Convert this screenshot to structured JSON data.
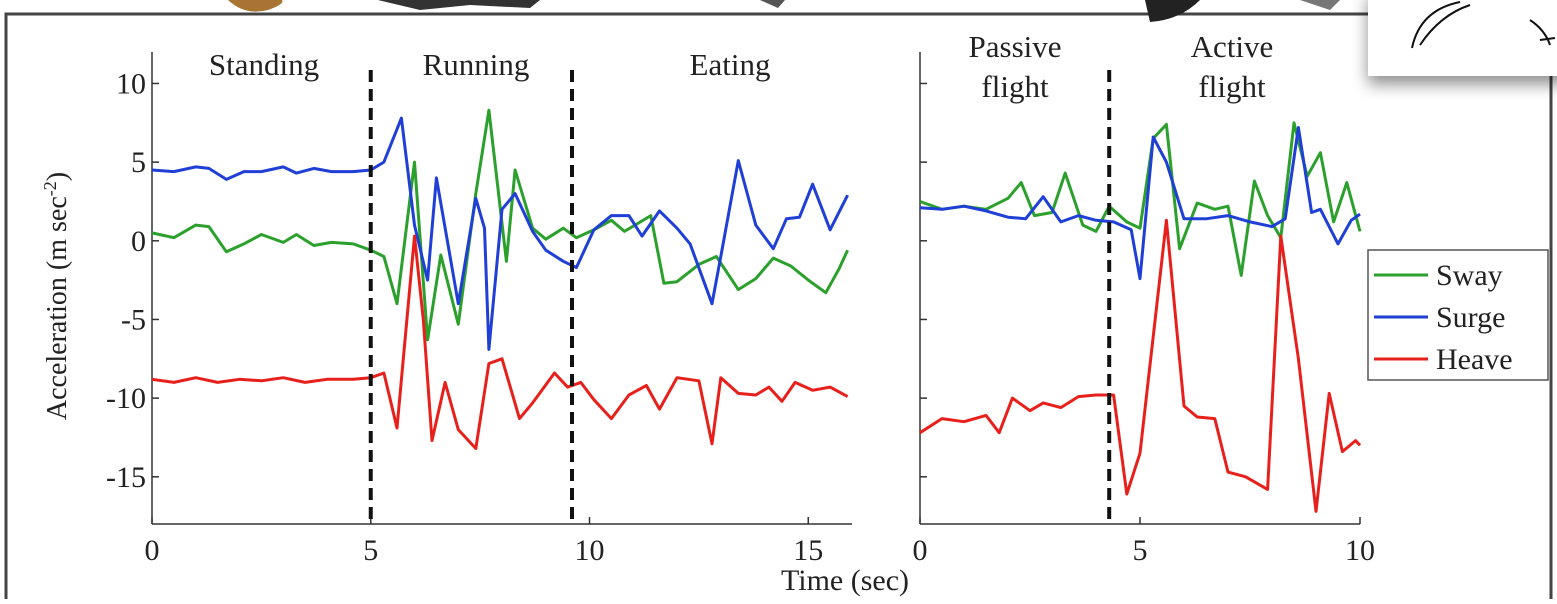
{
  "chart_data": [
    {
      "type": "line",
      "ylabel": [
        "Acceleration (m sec",
        "-2",
        ")"
      ],
      "xlabel": "Time (sec)",
      "annotations": [
        [
          "Standing"
        ],
        [
          "Running"
        ],
        [
          "Eating"
        ]
      ],
      "dividers": [
        5,
        9.6
      ],
      "xlim": [
        0,
        16
      ],
      "xticks": [
        0,
        5,
        10,
        15
      ],
      "ylim": [
        -18,
        12
      ],
      "yticks": [
        -15,
        -10,
        -5,
        0,
        5,
        10
      ],
      "ytick_labels": true,
      "series": [
        {
          "color": "#2ca02c",
          "x": [
            0,
            0.5,
            1,
            1.3,
            1.7,
            2.1,
            2.5,
            3,
            3.3,
            3.7,
            4.1,
            4.6,
            5,
            5.3,
            5.6,
            6,
            6.3,
            6.6,
            7,
            7.4,
            7.7,
            8.1,
            8.3,
            8.7,
            9,
            9.4,
            9.7,
            10.1,
            10.5,
            10.8,
            11.4,
            11.7,
            12,
            12.5,
            12.9,
            13.4,
            13.8,
            14.2,
            14.6,
            15,
            15.4,
            15.7,
            15.9
          ],
          "values": [
            0.5,
            0.2,
            1.0,
            0.9,
            -0.7,
            -0.2,
            0.4,
            -0.1,
            0.4,
            -0.3,
            -0.1,
            -0.2,
            -0.6,
            -1.0,
            -4.0,
            5.0,
            -6.3,
            -0.9,
            -5.3,
            3.0,
            8.3,
            -1.3,
            4.5,
            0.8,
            0.1,
            0.8,
            0.2,
            0.7,
            1.3,
            0.6,
            1.6,
            -2.7,
            -2.6,
            -1.5,
            -1.0,
            -3.1,
            -2.4,
            -1.1,
            -1.6,
            -2.5,
            -3.3,
            -1.8,
            -0.6
          ]
        },
        {
          "color": "#1f3fd6",
          "x": [
            0,
            0.5,
            1,
            1.3,
            1.7,
            2.1,
            2.5,
            3,
            3.3,
            3.7,
            4.1,
            4.6,
            5,
            5.3,
            5.7,
            6,
            6.3,
            6.5,
            7,
            7.4,
            7.6,
            7.7,
            8,
            8.3,
            8.7,
            9,
            9.4,
            9.7,
            10.1,
            10.5,
            10.9,
            11.2,
            11.6,
            12,
            12.3,
            12.8,
            13,
            13.4,
            13.8,
            14.2,
            14.5,
            14.8,
            15.1,
            15.5,
            15.9
          ],
          "values": [
            4.5,
            4.4,
            4.7,
            4.6,
            3.9,
            4.4,
            4.4,
            4.7,
            4.3,
            4.6,
            4.4,
            4.4,
            4.5,
            5.0,
            7.8,
            1.0,
            -2.5,
            4.0,
            -4.0,
            2.7,
            0.8,
            -6.9,
            2.0,
            3.0,
            0.6,
            -0.6,
            -1.3,
            -1.7,
            0.7,
            1.6,
            1.6,
            0.3,
            1.9,
            0.8,
            -0.2,
            -4.0,
            -1.0,
            5.1,
            1.0,
            -0.5,
            1.4,
            1.5,
            3.6,
            0.7,
            2.9
          ]
        },
        {
          "color": "#e8201c",
          "x": [
            0,
            0.5,
            1,
            1.5,
            2,
            2.5,
            3,
            3.5,
            4,
            4.6,
            5,
            5.3,
            5.6,
            6,
            6.2,
            6.4,
            6.7,
            7,
            7.4,
            7.7,
            8,
            8.4,
            8.7,
            9.2,
            9.5,
            9.8,
            10.1,
            10.5,
            10.9,
            11.3,
            11.6,
            12,
            12.5,
            12.8,
            13,
            13.4,
            13.8,
            14.1,
            14.4,
            14.7,
            15.1,
            15.5,
            15.9
          ],
          "values": [
            -8.8,
            -9.0,
            -8.7,
            -9.0,
            -8.8,
            -8.9,
            -8.7,
            -9.0,
            -8.8,
            -8.8,
            -8.7,
            -8.4,
            -11.9,
            0.3,
            -5.0,
            -12.7,
            -9.0,
            -12.0,
            -13.2,
            -7.8,
            -7.5,
            -11.3,
            -10.3,
            -8.4,
            -9.3,
            -9.0,
            -10.1,
            -11.3,
            -9.8,
            -9.2,
            -10.7,
            -8.7,
            -8.9,
            -12.9,
            -8.7,
            -9.7,
            -9.8,
            -9.3,
            -10.2,
            -9.0,
            -9.5,
            -9.3,
            -9.9
          ]
        }
      ]
    },
    {
      "type": "line",
      "annotations": [
        [
          "Passive",
          "flight"
        ],
        [
          "Active",
          "flight"
        ]
      ],
      "dividers": [
        4.3
      ],
      "xlim": [
        0,
        10
      ],
      "xticks": [
        0,
        5,
        10
      ],
      "ylim": [
        -18,
        12
      ],
      "yticks": [
        -15,
        -10,
        -5,
        0,
        5,
        10
      ],
      "ytick_labels": false,
      "series": [
        {
          "name": "Sway",
          "color": "#2ca02c",
          "x": [
            0,
            0.5,
            1,
            1.5,
            2,
            2.3,
            2.6,
            3,
            3.3,
            3.7,
            4,
            4.3,
            4.7,
            5,
            5.3,
            5.6,
            5.9,
            6.3,
            6.7,
            7,
            7.3,
            7.6,
            7.9,
            8.2,
            8.5,
            8.8,
            9.1,
            9.4,
            9.7,
            10
          ],
          "values": [
            2.5,
            2.0,
            2.2,
            2.0,
            2.7,
            3.7,
            1.6,
            1.8,
            4.3,
            1.0,
            0.6,
            2.2,
            1.2,
            0.8,
            6.5,
            7.4,
            -0.5,
            2.4,
            2.0,
            2.2,
            -2.2,
            3.8,
            1.6,
            0.2,
            7.5,
            4.1,
            5.6,
            1.2,
            3.7,
            0.6
          ]
        },
        {
          "name": "Surge",
          "color": "#1f3fd6",
          "x": [
            0,
            0.5,
            1,
            1.5,
            2,
            2.4,
            2.8,
            3.2,
            3.6,
            4,
            4.4,
            4.8,
            5,
            5.3,
            5.6,
            6,
            6.5,
            7,
            7.5,
            8,
            8.3,
            8.6,
            8.9,
            9.1,
            9.5,
            9.8,
            10
          ],
          "values": [
            2.1,
            2.0,
            2.2,
            1.9,
            1.5,
            1.4,
            2.8,
            1.2,
            1.6,
            1.3,
            1.2,
            0.7,
            -2.4,
            6.6,
            5.0,
            1.4,
            1.4,
            1.6,
            1.2,
            0.9,
            1.4,
            7.2,
            1.8,
            2.0,
            -0.2,
            1.3,
            1.7
          ]
        },
        {
          "name": "Heave",
          "color": "#e8201c",
          "x": [
            0,
            0.5,
            1,
            1.5,
            1.8,
            2.1,
            2.5,
            2.8,
            3.2,
            3.6,
            4,
            4.4,
            4.7,
            5,
            5.6,
            6,
            6.3,
            6.7,
            7,
            7.4,
            7.9,
            8.2,
            8.6,
            9,
            9.3,
            9.6,
            9.9,
            10
          ],
          "values": [
            -12.2,
            -11.3,
            -11.5,
            -11.1,
            -12.2,
            -10.0,
            -10.8,
            -10.3,
            -10.6,
            -9.9,
            -9.8,
            -9.8,
            -16.1,
            -13.5,
            1.3,
            -10.5,
            -11.2,
            -11.3,
            -14.7,
            -15.0,
            -15.8,
            0.3,
            -7.5,
            -17.2,
            -9.7,
            -13.4,
            -12.7,
            -13.0
          ]
        }
      ]
    }
  ]
}
